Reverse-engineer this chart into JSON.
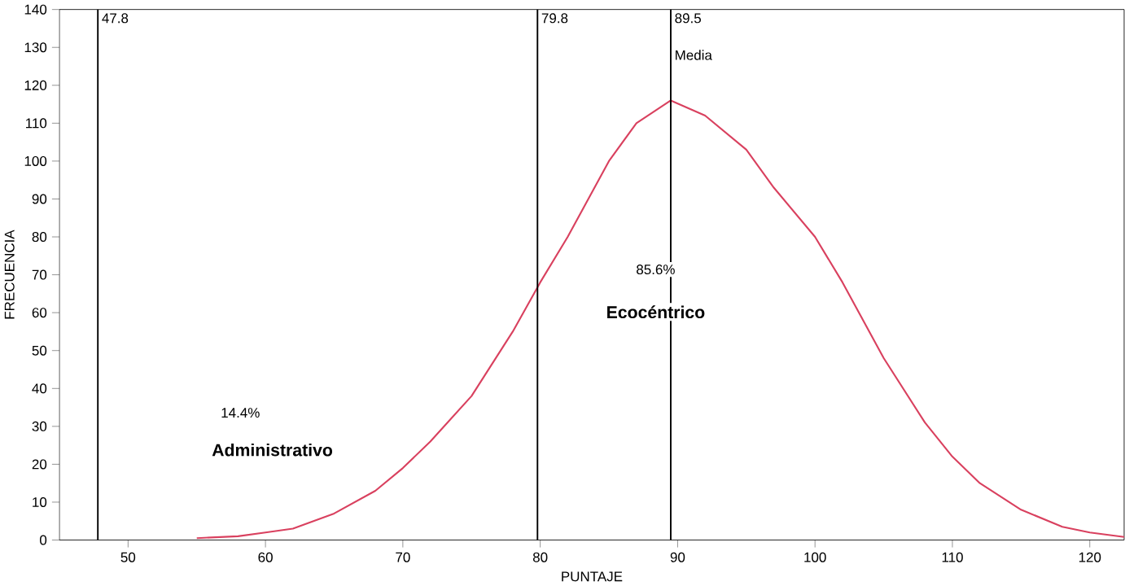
{
  "chart_data": {
    "type": "line",
    "xlabel": "PUNTAJE",
    "ylabel": "FRECUENCIA",
    "xlim": [
      45,
      122.5
    ],
    "ylim": [
      0,
      140
    ],
    "xticks": [
      50,
      60,
      70,
      80,
      90,
      100,
      110,
      120
    ],
    "yticks": [
      0,
      10,
      20,
      30,
      40,
      50,
      60,
      70,
      80,
      90,
      100,
      110,
      120,
      130,
      140
    ],
    "grid": false,
    "marker": "none",
    "line_style": "solid",
    "series": [
      {
        "color": "#d9415f",
        "x": [
          55,
          58,
          60,
          62,
          65,
          68,
          70,
          72,
          75,
          78,
          80,
          82,
          85,
          87,
          89.5,
          92,
          95,
          97,
          100,
          102,
          105,
          108,
          110,
          112,
          115,
          118,
          120,
          122.5
        ],
        "values": [
          0.5,
          1,
          2,
          3,
          7,
          13,
          19,
          26,
          38,
          55,
          68,
          80,
          100,
          110,
          116,
          112,
          103,
          93,
          80,
          68,
          48,
          31,
          22,
          15,
          8,
          3.5,
          2,
          0.8
        ]
      }
    ],
    "ref_lines": [
      {
        "axis": "x",
        "value": 47.8,
        "label": "47.8",
        "color": "#000000"
      },
      {
        "axis": "x",
        "value": 79.8,
        "label": "79.8",
        "color": "#000000"
      },
      {
        "axis": "x",
        "value": 89.5,
        "label": "89.5",
        "color": "#000000"
      }
    ],
    "annotations": [
      {
        "text": "Media",
        "x": 89.5,
        "y": 128
      },
      "85.6%",
      "Ecocéntrico",
      "14.4%",
      "Administrativo"
    ]
  }
}
